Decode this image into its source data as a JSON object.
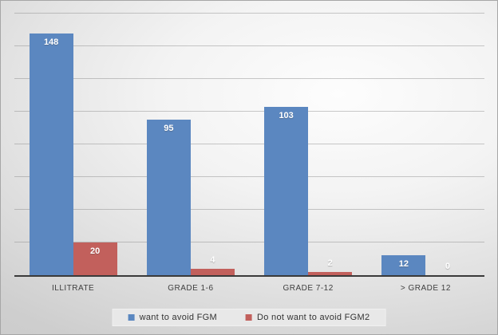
{
  "chart_data": {
    "type": "bar",
    "title": "",
    "categories": [
      "ILLITRATE",
      "GRADE 1-6",
      "GRADE 7-12",
      "> GRADE 12"
    ],
    "series": [
      {
        "name": "want to avoid FGM",
        "color": "#5b87c0",
        "values": [
          148,
          95,
          103,
          12
        ]
      },
      {
        "name": "Do not want to avoid FGM2",
        "color": "#c2605c",
        "values": [
          20,
          4,
          2,
          0
        ]
      }
    ],
    "ylim": [
      0,
      160
    ],
    "gridline_step": 20,
    "grid": true,
    "y_axis_labels_visible": false,
    "legend_position": "bottom",
    "data_labels": "white-bold"
  },
  "style": {
    "axis_color": "#3a3a3a",
    "gridline_color": "rgba(128,128,128,0.42)",
    "legend_background": "#e8e8e8",
    "category_text_color": "#3f3f3f"
  }
}
